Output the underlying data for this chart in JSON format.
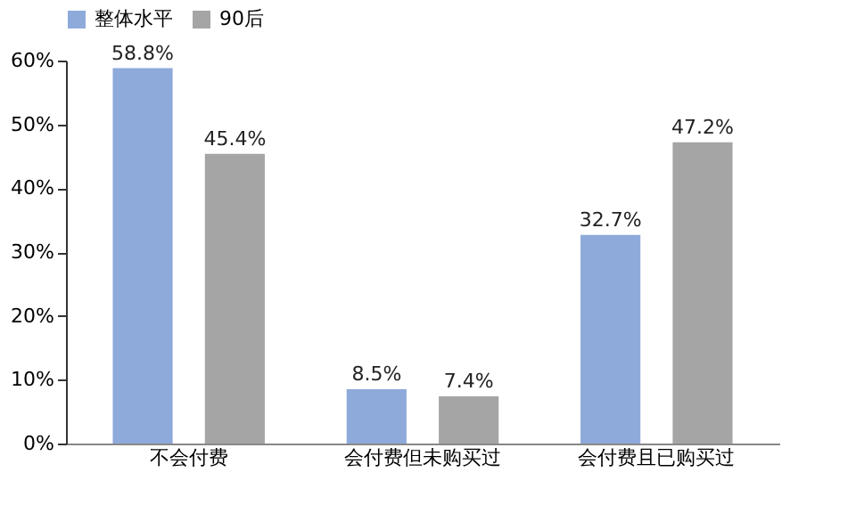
{
  "chart_data": {
    "type": "bar",
    "categories": [
      "不会付费",
      "会付费但未购买过",
      "会付费且已购买过"
    ],
    "series": [
      {
        "name": "整体水平",
        "color": "#8eaadb",
        "values": [
          58.8,
          8.5,
          32.7
        ],
        "value_labels": [
          "58.8%",
          "8.5%",
          "32.7%"
        ]
      },
      {
        "name": "90后",
        "color": "#a5a5a5",
        "values": [
          45.4,
          7.4,
          47.2
        ],
        "value_labels": [
          "45.4%",
          "7.4%",
          "47.2%"
        ]
      }
    ],
    "ylim": [
      0,
      60
    ],
    "yticks": [
      {
        "value": 0,
        "label": "0%"
      },
      {
        "value": 10,
        "label": "10%"
      },
      {
        "value": 20,
        "label": "20%"
      },
      {
        "value": 30,
        "label": "30%"
      },
      {
        "value": 40,
        "label": "40%"
      },
      {
        "value": 50,
        "label": "50%"
      },
      {
        "value": 60,
        "label": "60%"
      }
    ],
    "grid": false,
    "legend": "top"
  }
}
